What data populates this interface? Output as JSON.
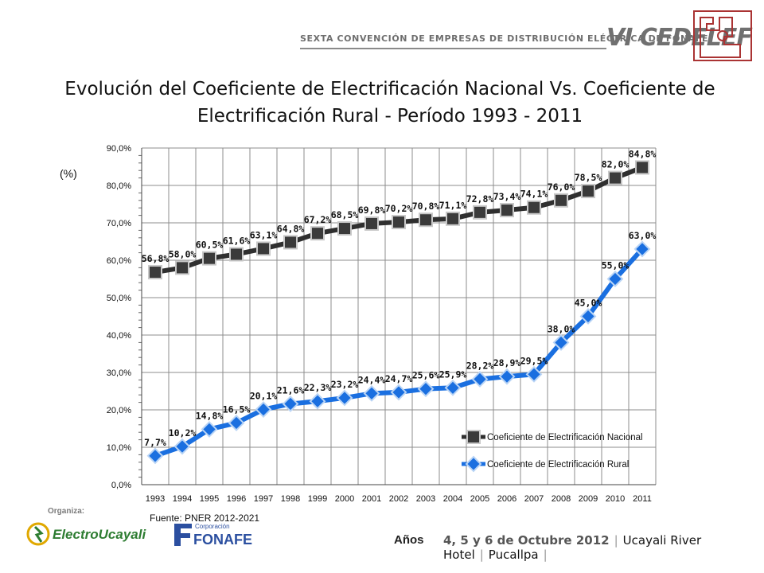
{
  "header": {
    "event_text": "SEXTA CONVENCIÓN DE EMPRESAS DE DISTRIBUCIÓN ELÉCTRICA DE FONAFE",
    "brand": "VI CEDELEF"
  },
  "title_line1": "Evolución del Coeficiente de Electrificación Nacional Vs. Coeficiente de",
  "title_line2": "Electrificación Rural - Período 1993 - 2011",
  "y_unit": "(%)",
  "source": "Fuente: PNER 2012-2021",
  "x_title": "Años",
  "footer": {
    "organiza": "Organiza:",
    "logo1": "ElectroUcayali",
    "logo2_small": "Corporación",
    "logo2": "FONAFE",
    "date": "4, 5 y 6 de Octubre 2012",
    "venue": "Ucayali River Hotel",
    "city": "Pucallpa"
  },
  "colors": {
    "national": "#2f2f2f",
    "rural": "#1a6fe0",
    "grid": "#8c8c8c"
  },
  "chart_data": {
    "type": "line",
    "categories": [
      "1993",
      "1994",
      "1995",
      "1996",
      "1997",
      "1998",
      "1999",
      "2000",
      "2001",
      "2002",
      "2003",
      "2004",
      "2005",
      "2006",
      "2007",
      "2008",
      "2009",
      "2010",
      "2011"
    ],
    "ylim": [
      0,
      90
    ],
    "yticks": [
      "0,0%",
      "10,0%",
      "20,0%",
      "30,0%",
      "40,0%",
      "50,0%",
      "60,0%",
      "70,0%",
      "80,0%",
      "90,0%"
    ],
    "grid": true,
    "legend_position": "bottom-right",
    "series": [
      {
        "name": "Coeficiente de Electrificación Nacional",
        "values": [
          56.8,
          58.0,
          60.5,
          61.6,
          63.1,
          64.8,
          67.2,
          68.5,
          69.8,
          70.2,
          70.8,
          71.1,
          72.8,
          73.4,
          74.1,
          76.0,
          78.5,
          82.0,
          84.8
        ],
        "labels": [
          "56,8%",
          "58,0%",
          "60,5%",
          "61,6%",
          "63,1%",
          "64,8%",
          "67,2%",
          "68,5%",
          "69,8%",
          "70,2%",
          "70,8%",
          "71,1%",
          "72,8%",
          "73,4%",
          "74,1%",
          "76,0%",
          "78,5%",
          "82,0%",
          "84,8%"
        ]
      },
      {
        "name": "Coeficiente de Electrificación Rural",
        "values": [
          7.7,
          10.2,
          14.8,
          16.5,
          20.1,
          21.6,
          22.3,
          23.2,
          24.4,
          24.7,
          25.6,
          25.9,
          28.2,
          28.9,
          29.5,
          38.0,
          45.0,
          55.0,
          63.0
        ],
        "labels": [
          "7,7%",
          "10,2%",
          "14,8%",
          "16,5%",
          "20,1%",
          "21,6%",
          "22,3%",
          "23,2%",
          "24,4%",
          "24,7%",
          "25,6%",
          "25,9%",
          "28,2%",
          "28,9%",
          "29,5%",
          "38,0%",
          "45,0%",
          "55,0%",
          "63,0%"
        ]
      }
    ]
  }
}
